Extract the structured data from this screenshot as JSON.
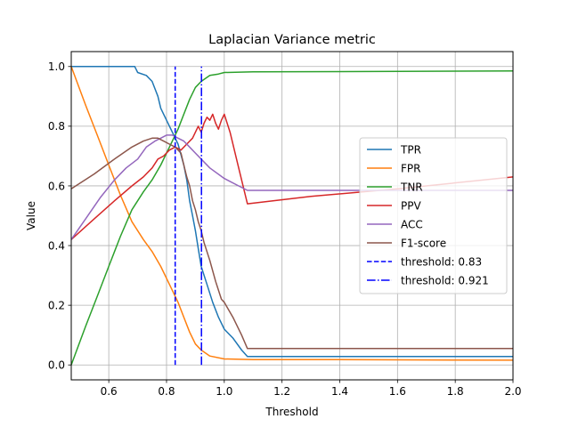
{
  "chart_data": {
    "type": "line",
    "title": "Laplacian Variance metric",
    "xlabel": "Threshold",
    "ylabel": "Value",
    "xlim": [
      0.47,
      2.0
    ],
    "ylim": [
      -0.05,
      1.05
    ],
    "xticks": [
      0.6,
      0.8,
      1.0,
      1.2,
      1.4,
      1.6,
      1.8,
      2.0
    ],
    "xtick_labels": [
      "0.6",
      "0.8",
      "1.0",
      "1.2",
      "1.4",
      "1.6",
      "1.8",
      "2.0"
    ],
    "yticks": [
      0.0,
      0.2,
      0.4,
      0.6,
      0.8,
      1.0
    ],
    "ytick_labels": [
      "0.0",
      "0.2",
      "0.4",
      "0.6",
      "0.8",
      "1.0"
    ],
    "grid": true,
    "legend_position": "center-right",
    "series": [
      {
        "name": "TPR",
        "color": "#1f77b4",
        "style": "solid",
        "x": [
          0.47,
          0.6,
          0.69,
          0.7,
          0.73,
          0.75,
          0.77,
          0.78,
          0.8,
          0.82,
          0.84,
          0.86,
          0.87,
          0.88,
          0.89,
          0.9,
          0.91,
          0.92,
          0.94,
          0.96,
          0.98,
          1.0,
          1.03,
          1.06,
          1.08,
          1.2,
          1.5,
          2.0
        ],
        "y": [
          1.0,
          1.0,
          1.0,
          0.98,
          0.97,
          0.95,
          0.9,
          0.86,
          0.82,
          0.78,
          0.74,
          0.67,
          0.62,
          0.55,
          0.5,
          0.45,
          0.39,
          0.33,
          0.27,
          0.21,
          0.16,
          0.12,
          0.09,
          0.05,
          0.028,
          0.028,
          0.028,
          0.028
        ]
      },
      {
        "name": "FPR",
        "color": "#ff7f0e",
        "style": "solid",
        "x": [
          0.47,
          0.52,
          0.56,
          0.6,
          0.64,
          0.68,
          0.72,
          0.75,
          0.78,
          0.8,
          0.82,
          0.84,
          0.86,
          0.88,
          0.9,
          0.92,
          0.95,
          1.0,
          1.1,
          1.3,
          1.6,
          2.0
        ],
        "y": [
          1.0,
          0.87,
          0.77,
          0.67,
          0.57,
          0.48,
          0.42,
          0.38,
          0.33,
          0.29,
          0.25,
          0.21,
          0.16,
          0.11,
          0.07,
          0.05,
          0.03,
          0.02,
          0.018,
          0.018,
          0.017,
          0.016
        ]
      },
      {
        "name": "TNR",
        "color": "#2ca02c",
        "style": "solid",
        "x": [
          0.47,
          0.52,
          0.56,
          0.6,
          0.64,
          0.68,
          0.72,
          0.75,
          0.78,
          0.8,
          0.82,
          0.84,
          0.86,
          0.88,
          0.9,
          0.92,
          0.95,
          0.98,
          1.0,
          1.1,
          1.4,
          1.7,
          2.0
        ],
        "y": [
          0.0,
          0.13,
          0.23,
          0.33,
          0.43,
          0.52,
          0.58,
          0.62,
          0.67,
          0.71,
          0.75,
          0.79,
          0.84,
          0.89,
          0.93,
          0.95,
          0.97,
          0.975,
          0.98,
          0.982,
          0.983,
          0.984,
          0.985
        ]
      },
      {
        "name": "PPV",
        "color": "#d62728",
        "style": "solid",
        "x": [
          0.47,
          0.55,
          0.62,
          0.68,
          0.72,
          0.75,
          0.77,
          0.79,
          0.81,
          0.83,
          0.85,
          0.87,
          0.89,
          0.91,
          0.92,
          0.93,
          0.94,
          0.95,
          0.96,
          0.97,
          0.98,
          0.99,
          1.0,
          1.02,
          1.05,
          1.08,
          1.3,
          1.6,
          2.0
        ],
        "y": [
          0.42,
          0.49,
          0.55,
          0.6,
          0.63,
          0.66,
          0.69,
          0.7,
          0.72,
          0.73,
          0.72,
          0.74,
          0.76,
          0.8,
          0.78,
          0.81,
          0.83,
          0.82,
          0.84,
          0.81,
          0.79,
          0.82,
          0.84,
          0.78,
          0.66,
          0.54,
          0.565,
          0.59,
          0.63
        ]
      },
      {
        "name": "ACC",
        "color": "#9467bd",
        "style": "solid",
        "x": [
          0.47,
          0.52,
          0.57,
          0.62,
          0.66,
          0.7,
          0.73,
          0.76,
          0.78,
          0.8,
          0.82,
          0.84,
          0.86,
          0.88,
          0.9,
          0.92,
          0.95,
          1.0,
          1.05,
          1.08,
          1.3,
          1.6,
          2.0
        ],
        "y": [
          0.42,
          0.49,
          0.56,
          0.62,
          0.66,
          0.69,
          0.73,
          0.75,
          0.76,
          0.77,
          0.77,
          0.76,
          0.75,
          0.73,
          0.71,
          0.69,
          0.66,
          0.625,
          0.6,
          0.585,
          0.585,
          0.585,
          0.585
        ]
      },
      {
        "name": "F1-score",
        "color": "#8c564b",
        "style": "solid",
        "x": [
          0.47,
          0.55,
          0.62,
          0.68,
          0.72,
          0.75,
          0.77,
          0.79,
          0.81,
          0.83,
          0.85,
          0.86,
          0.87,
          0.88,
          0.89,
          0.9,
          0.91,
          0.92,
          0.93,
          0.95,
          0.97,
          0.99,
          1.0,
          1.03,
          1.06,
          1.08,
          1.3,
          1.6,
          2.0
        ],
        "y": [
          0.59,
          0.64,
          0.69,
          0.73,
          0.75,
          0.76,
          0.76,
          0.75,
          0.74,
          0.73,
          0.71,
          0.67,
          0.63,
          0.6,
          0.55,
          0.52,
          0.48,
          0.45,
          0.41,
          0.35,
          0.28,
          0.22,
          0.21,
          0.16,
          0.1,
          0.055,
          0.055,
          0.055,
          0.055
        ]
      },
      {
        "name": "threshold: 0.83",
        "color": "#0000ff",
        "style": "dashed",
        "vline": 0.83
      },
      {
        "name": "threshold: 0.921",
        "color": "#0000ff",
        "style": "dashdot",
        "vline": 0.921
      }
    ]
  }
}
